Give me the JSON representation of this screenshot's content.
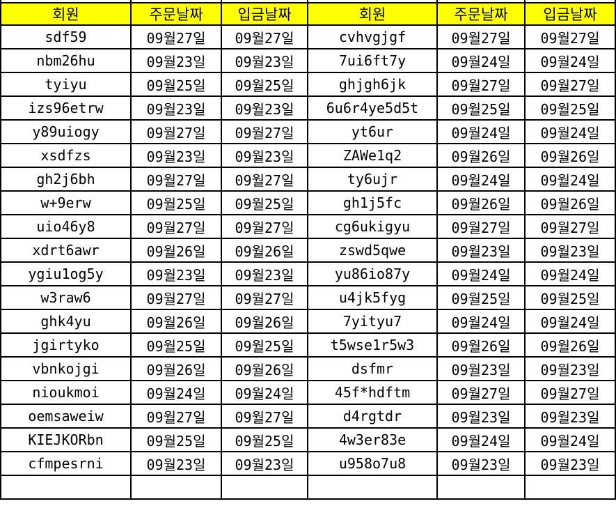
{
  "table": {
    "headers": [
      "회원",
      "주문날짜",
      "입금날짜",
      "회원",
      "주문날짜",
      "입금날짜"
    ],
    "column_kinds": [
      "member",
      "order-date",
      "deposit-date",
      "member",
      "order-date",
      "deposit-date"
    ],
    "rows": [
      [
        "sdf59",
        "09월27일",
        "09월27일",
        "cvhvgjgf",
        "09월27일",
        "09월27일"
      ],
      [
        "nbm26hu",
        "09월23일",
        "09월23일",
        "7ui6ft7y",
        "09월24일",
        "09월24일"
      ],
      [
        "tyiyu",
        "09월25일",
        "09월25일",
        "ghjgh6jk",
        "09월27일",
        "09월27일"
      ],
      [
        "izs96etrw",
        "09월23일",
        "09월23일",
        "6u6r4ye5d5t",
        "09월25일",
        "09월25일"
      ],
      [
        "y89uiogy",
        "09월27일",
        "09월27일",
        "yt6ur",
        "09월24일",
        "09월24일"
      ],
      [
        "xsdfzs",
        "09월23일",
        "09월23일",
        "ZAWe1q2",
        "09월26일",
        "09월26일"
      ],
      [
        "gh2j6bh",
        "09월27일",
        "09월27일",
        "ty6ujr",
        "09월24일",
        "09월24일"
      ],
      [
        "w+9erw",
        "09월25일",
        "09월25일",
        "gh1j5fc",
        "09월26일",
        "09월26일"
      ],
      [
        "uio46y8",
        "09월27일",
        "09월27일",
        "cg6ukigyu",
        "09월27일",
        "09월27일"
      ],
      [
        "xdrt6awr",
        "09월26일",
        "09월26일",
        "zswd5qwe",
        "09월23일",
        "09월23일"
      ],
      [
        "ygiu1og5y",
        "09월23일",
        "09월23일",
        "yu86io87y",
        "09월24일",
        "09월24일"
      ],
      [
        "w3raw6",
        "09월27일",
        "09월27일",
        "u4jk5fyg",
        "09월25일",
        "09월25일"
      ],
      [
        "ghk4yu",
        "09월26일",
        "09월26일",
        "7yityu7",
        "09월24일",
        "09월24일"
      ],
      [
        "jgirtyko",
        "09월25일",
        "09월25일",
        "t5wse1r5w3",
        "09월26일",
        "09월26일"
      ],
      [
        "vbnkojgi",
        "09월26일",
        "09월26일",
        "dsfmr",
        "09월23일",
        "09월23일"
      ],
      [
        "nioukmoi",
        "09월24일",
        "09월24일",
        "45f*hdftm",
        "09월27일",
        "09월27일"
      ],
      [
        "oemsaweiw",
        "09월27일",
        "09월27일",
        "d4rgtdr",
        "09월23일",
        "09월23일"
      ],
      [
        "KIEJKORbn",
        "09월25일",
        "09월25일",
        "4w3er83e",
        "09월24일",
        "09월24일"
      ],
      [
        "cfmpesrni",
        "09월23일",
        "09월23일",
        "u958o7u8",
        "09월23일",
        "09월23일"
      ]
    ]
  },
  "colors": {
    "header_bg": "#ffff00",
    "border": "#000000",
    "text": "#000000",
    "row_bg": "#ffffff"
  }
}
